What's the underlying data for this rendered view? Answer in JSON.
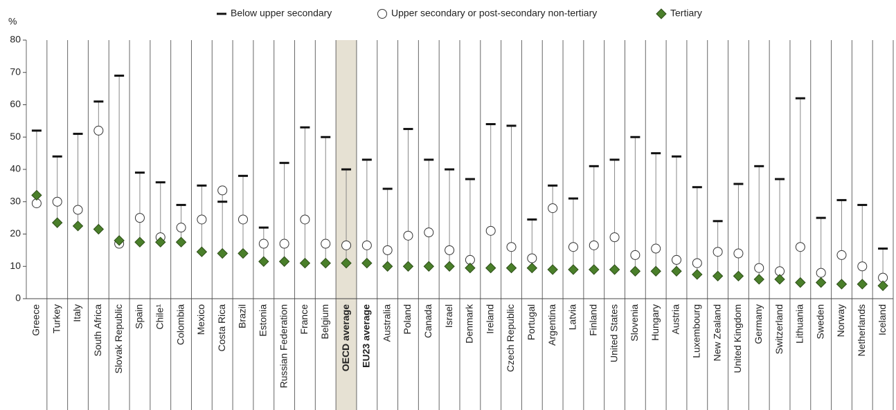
{
  "chart_data": {
    "type": "dot",
    "y_label": "%",
    "categories": [
      "Greece",
      "Turkey",
      "Italy",
      "South Africa",
      "Slovak Republic",
      "Spain",
      "Chile¹",
      "Colombia",
      "Mexico",
      "Costa Rica",
      "Brazil",
      "Estonia",
      "Russian Federation",
      "France",
      "Belgium",
      "OECD average",
      "EU23 average",
      "Australia",
      "Poland",
      "Canada",
      "Israel",
      "Denmark",
      "Ireland",
      "Czech Republic",
      "Portugal",
      "Argentina",
      "Latvia",
      "Finland",
      "United States",
      "Slovenia",
      "Hungary",
      "Austria",
      "Luxembourg",
      "New Zealand",
      "United Kingdom",
      "Germany",
      "Switzerland",
      "Lithuania",
      "Sweden",
      "Norway",
      "Netherlands",
      "Iceland"
    ],
    "highlight": "OECD average",
    "bold_categories": [
      "OECD average",
      "EU23 average"
    ],
    "series": [
      {
        "name": "Below upper secondary",
        "marker": "dash",
        "color": "#111111",
        "values": [
          52,
          44,
          51,
          61,
          69,
          39,
          36,
          29,
          35,
          30,
          38,
          22,
          42,
          53,
          50,
          40,
          43,
          34,
          52.5,
          43,
          40,
          37,
          54,
          53.5,
          24.5,
          35,
          31,
          41,
          43,
          50,
          45,
          44,
          34.5,
          24,
          35.5,
          41,
          37,
          62,
          25,
          30.5,
          29,
          15.5
        ]
      },
      {
        "name": "Upper secondary or post-secondary non-tertiary",
        "marker": "circle",
        "color": "#ffffff",
        "values": [
          29.5,
          30,
          27.5,
          52,
          17,
          25,
          19,
          22,
          24.5,
          33.5,
          24.5,
          17,
          17,
          24.5,
          17,
          16.5,
          16.5,
          15,
          19.5,
          20.5,
          15,
          12,
          21,
          16,
          12.5,
          28,
          16,
          16.5,
          19,
          13.5,
          15.5,
          12,
          11,
          14.5,
          14,
          9.5,
          8.5,
          16,
          8,
          13.5,
          10,
          6.5
        ]
      },
      {
        "name": "Tertiary",
        "marker": "diamond",
        "color": "#4a7f2a",
        "values": [
          32,
          23.5,
          22.5,
          21.5,
          18,
          17.5,
          17.5,
          17.5,
          14.5,
          14,
          14,
          11.5,
          11.5,
          11,
          11,
          11,
          11,
          10,
          10,
          10,
          10,
          9.5,
          9.5,
          9.5,
          9.5,
          9,
          9,
          9,
          9,
          8.5,
          8.5,
          8.5,
          7.5,
          7,
          7,
          6,
          6,
          5,
          5,
          4.5,
          4.5,
          4
        ]
      }
    ],
    "ylim": [
      0,
      80
    ],
    "yticks": [
      0,
      10,
      20,
      30,
      40,
      50,
      60,
      70,
      80
    ],
    "grid": false
  }
}
